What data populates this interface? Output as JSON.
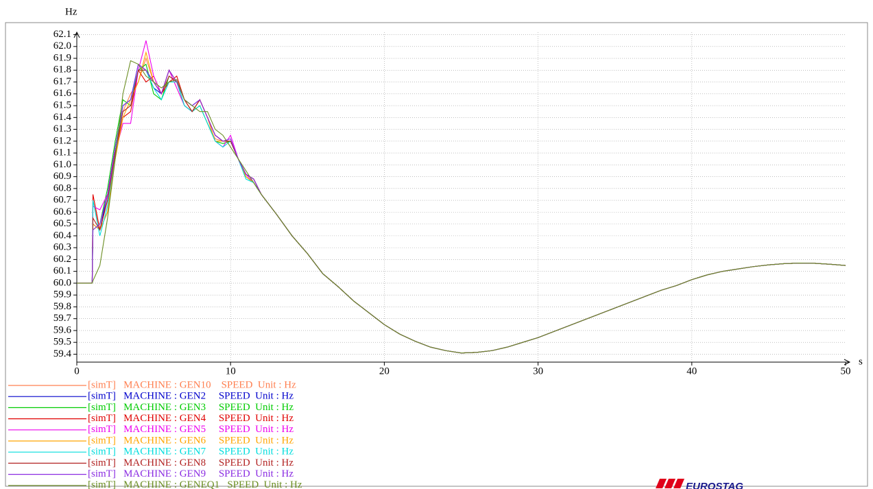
{
  "chart_data": {
    "type": "line",
    "y_label": "Hz",
    "x_label": "s",
    "logo": "EUROSTAG",
    "x": [
      0,
      1,
      1.05,
      1.5,
      2,
      2.5,
      3,
      3.5,
      4,
      4.5,
      5,
      5.5,
      6,
      6.5,
      7,
      7.5,
      8,
      8.5,
      9,
      9.5,
      10,
      10.5,
      11,
      11.5,
      12,
      13,
      14,
      15,
      16,
      17,
      18,
      19,
      20,
      21,
      22,
      23,
      24,
      25,
      26,
      27,
      28,
      29,
      30,
      31,
      32,
      33,
      34,
      35,
      36,
      37,
      38,
      39,
      40,
      41,
      42,
      43,
      44,
      45,
      46,
      47,
      48,
      49,
      50
    ],
    "xlim": [
      0,
      50
    ],
    "xticks": [
      0,
      10,
      20,
      30,
      40,
      50
    ],
    "ylim": [
      59.333,
      62.19
    ],
    "yticks": [
      59.4,
      59.5,
      59.6,
      59.7,
      59.8,
      59.9,
      {
        "value": 60,
        "label": "60.0"
      },
      60.1,
      60.2,
      60.3,
      60.4,
      60.5,
      60.6,
      60.7,
      60.8,
      60.9,
      {
        "value": 61,
        "label": "61.0"
      },
      61.1,
      61.2,
      61.3,
      61.4,
      61.5,
      61.6,
      61.7,
      61.8,
      61.9,
      {
        "value": 62,
        "label": "62.0"
      },
      62.1
    ],
    "grid": true,
    "series": [
      {
        "name": "[simT]   MACHINE : GEN10    SPEED  Unit : Hz",
        "color": "#ff7f50",
        "values": [
          60,
          60,
          60.7,
          60.45,
          60.6,
          61.1,
          61.45,
          61.6,
          61.7,
          61.9,
          61.7,
          61.6,
          61.8,
          61.65,
          61.5,
          61.45,
          61.5,
          61.35,
          61.22,
          61.2,
          61.2,
          61.05,
          60.9,
          60.85,
          60.75,
          60.58,
          60.4,
          60.25,
          60.08,
          59.97,
          59.85,
          59.75,
          59.65,
          59.57,
          59.51,
          59.46,
          59.43,
          59.41,
          59.415,
          59.43,
          59.46,
          59.5,
          59.54,
          59.59,
          59.64,
          59.69,
          59.74,
          59.79,
          59.84,
          59.89,
          59.94,
          59.98,
          60.03,
          60.07,
          60.1,
          60.12,
          60.14,
          60.155,
          60.165,
          60.17,
          60.168,
          60.16,
          60.15
        ]
      },
      {
        "name": "[simT]   MACHINE : GEN2     SPEED  Unit : Hz",
        "color": "#0000cc",
        "values": [
          60,
          60,
          60.5,
          60.45,
          60.75,
          61.15,
          61.5,
          61.55,
          61.85,
          61.8,
          61.65,
          61.6,
          61.8,
          61.7,
          61.55,
          61.5,
          61.55,
          61.4,
          61.25,
          61.2,
          61.2,
          61.05,
          60.92,
          60.88,
          60.75,
          60.58,
          60.4,
          60.25,
          60.08,
          59.97,
          59.85,
          59.75,
          59.65,
          59.57,
          59.51,
          59.46,
          59.43,
          59.41,
          59.415,
          59.43,
          59.46,
          59.5,
          59.54,
          59.59,
          59.64,
          59.69,
          59.74,
          59.79,
          59.84,
          59.89,
          59.94,
          59.98,
          60.03,
          60.07,
          60.1,
          60.12,
          60.14,
          60.155,
          60.165,
          60.17,
          60.168,
          60.16,
          60.15
        ]
      },
      {
        "name": "[simT]   MACHINE : GEN3     SPEED  Unit : Hz",
        "color": "#00cc00",
        "values": [
          60,
          60,
          60.45,
          60.5,
          60.8,
          61.2,
          61.55,
          61.5,
          61.8,
          61.85,
          61.6,
          61.55,
          61.75,
          61.7,
          61.5,
          61.45,
          61.5,
          61.35,
          61.2,
          61.18,
          61.2,
          61.05,
          60.9,
          60.85,
          60.75,
          60.58,
          60.4,
          60.25,
          60.08,
          59.97,
          59.85,
          59.75,
          59.65,
          59.57,
          59.51,
          59.46,
          59.43,
          59.41,
          59.415,
          59.43,
          59.46,
          59.5,
          59.54,
          59.59,
          59.64,
          59.69,
          59.74,
          59.79,
          59.84,
          59.89,
          59.94,
          59.98,
          60.03,
          60.07,
          60.1,
          60.12,
          60.14,
          60.155,
          60.165,
          60.17,
          60.168,
          60.16,
          60.15
        ]
      },
      {
        "name": "[simT]   MACHINE : GEN4     SPEED  Unit : Hz",
        "color": "#e00000",
        "values": [
          60,
          60,
          60.75,
          60.45,
          60.7,
          61.1,
          61.4,
          61.45,
          61.8,
          61.7,
          61.75,
          61.6,
          61.7,
          61.75,
          61.55,
          61.45,
          61.55,
          61.4,
          61.25,
          61.2,
          61.2,
          61.05,
          60.92,
          60.88,
          60.75,
          60.58,
          60.4,
          60.25,
          60.08,
          59.97,
          59.85,
          59.75,
          59.65,
          59.57,
          59.51,
          59.46,
          59.43,
          59.41,
          59.415,
          59.43,
          59.46,
          59.5,
          59.54,
          59.59,
          59.64,
          59.69,
          59.74,
          59.79,
          59.84,
          59.89,
          59.94,
          59.98,
          60.03,
          60.07,
          60.1,
          60.12,
          60.14,
          60.155,
          60.165,
          60.17,
          60.168,
          60.16,
          60.15
        ]
      },
      {
        "name": "[simT]   MACHINE : GEN5     SPEED  Unit : Hz",
        "color": "#ee00ee",
        "values": [
          60,
          60,
          60.65,
          60.62,
          60.75,
          61.1,
          61.35,
          61.35,
          61.8,
          62.05,
          61.75,
          61.6,
          61.8,
          61.65,
          61.5,
          61.45,
          61.55,
          61.4,
          61.2,
          61.15,
          61.25,
          61.05,
          60.92,
          60.85,
          60.75,
          60.58,
          60.4,
          60.25,
          60.08,
          59.97,
          59.85,
          59.75,
          59.65,
          59.57,
          59.51,
          59.46,
          59.43,
          59.41,
          59.415,
          59.43,
          59.46,
          59.5,
          59.54,
          59.59,
          59.64,
          59.69,
          59.74,
          59.79,
          59.84,
          59.89,
          59.94,
          59.98,
          60.03,
          60.07,
          60.1,
          60.12,
          60.14,
          60.155,
          60.165,
          60.17,
          60.168,
          60.16,
          60.15
        ]
      },
      {
        "name": "[simT]   MACHINE : GEN6     SPEED  Unit : Hz",
        "color": "#ffa500",
        "values": [
          60,
          60,
          60.5,
          60.45,
          60.6,
          61.05,
          61.4,
          61.55,
          61.7,
          61.95,
          61.7,
          61.6,
          61.8,
          61.7,
          61.55,
          61.45,
          61.55,
          61.4,
          61.2,
          61.2,
          61.2,
          61.05,
          60.9,
          60.85,
          60.75,
          60.58,
          60.4,
          60.25,
          60.08,
          59.97,
          59.85,
          59.75,
          59.65,
          59.57,
          59.51,
          59.46,
          59.43,
          59.41,
          59.415,
          59.43,
          59.46,
          59.5,
          59.54,
          59.59,
          59.64,
          59.69,
          59.74,
          59.79,
          59.84,
          59.89,
          59.94,
          59.98,
          60.03,
          60.07,
          60.1,
          60.12,
          60.14,
          60.155,
          60.165,
          60.17,
          60.168,
          60.16,
          60.15
        ]
      },
      {
        "name": "[simT]   MACHINE : GEN7     SPEED  Unit : Hz",
        "color": "#00dddd",
        "values": [
          60,
          60,
          60.7,
          60.4,
          60.65,
          61.1,
          61.5,
          61.55,
          61.8,
          61.8,
          61.65,
          61.55,
          61.7,
          61.7,
          61.5,
          61.45,
          61.5,
          61.35,
          61.2,
          61.15,
          61.2,
          61.05,
          60.88,
          60.85,
          60.75,
          60.58,
          60.4,
          60.25,
          60.08,
          59.97,
          59.85,
          59.75,
          59.65,
          59.57,
          59.51,
          59.46,
          59.43,
          59.41,
          59.415,
          59.43,
          59.46,
          59.5,
          59.54,
          59.59,
          59.64,
          59.69,
          59.74,
          59.79,
          59.84,
          59.89,
          59.94,
          59.98,
          60.03,
          60.07,
          60.1,
          60.12,
          60.14,
          60.155,
          60.165,
          60.17,
          60.168,
          60.16,
          60.15
        ]
      },
      {
        "name": "[simT]   MACHINE : GEN8     SPEED  Unit : Hz",
        "color": "#b22222",
        "values": [
          60,
          60,
          60.55,
          60.45,
          60.7,
          61.1,
          61.45,
          61.5,
          61.8,
          61.8,
          61.7,
          61.6,
          61.75,
          61.7,
          61.55,
          61.45,
          61.55,
          61.4,
          61.25,
          61.2,
          61.2,
          61.05,
          60.92,
          60.88,
          60.75,
          60.58,
          60.4,
          60.25,
          60.08,
          59.97,
          59.85,
          59.75,
          59.65,
          59.57,
          59.51,
          59.46,
          59.43,
          59.41,
          59.415,
          59.43,
          59.46,
          59.5,
          59.54,
          59.59,
          59.64,
          59.69,
          59.74,
          59.79,
          59.84,
          59.89,
          59.94,
          59.98,
          60.03,
          60.07,
          60.1,
          60.12,
          60.14,
          60.155,
          60.165,
          60.17,
          60.168,
          60.16,
          60.15
        ]
      },
      {
        "name": "[simT]   MACHINE : GEN9     SPEED  Unit : Hz",
        "color": "#8a2be2",
        "values": [
          60,
          60,
          60.45,
          60.5,
          60.75,
          61.15,
          61.5,
          61.55,
          61.85,
          61.8,
          61.7,
          61.6,
          61.8,
          61.7,
          61.55,
          61.5,
          61.55,
          61.4,
          61.25,
          61.2,
          61.22,
          61.05,
          60.92,
          60.88,
          60.75,
          60.58,
          60.4,
          60.25,
          60.08,
          59.97,
          59.85,
          59.75,
          59.65,
          59.57,
          59.51,
          59.46,
          59.43,
          59.41,
          59.415,
          59.43,
          59.46,
          59.5,
          59.54,
          59.59,
          59.64,
          59.69,
          59.74,
          59.79,
          59.84,
          59.89,
          59.94,
          59.98,
          60.03,
          60.07,
          60.1,
          60.12,
          60.14,
          60.155,
          60.165,
          60.17,
          60.168,
          60.16,
          60.15
        ]
      },
      {
        "name": "[simT]   MACHINE : GENEQ1   SPEED  Unit : Hz",
        "color": "#6b8e23",
        "values": [
          60,
          60,
          60.02,
          60.15,
          60.55,
          61.05,
          61.6,
          61.88,
          61.85,
          61.75,
          61.7,
          61.65,
          61.7,
          61.72,
          61.55,
          61.5,
          61.45,
          61.45,
          61.3,
          61.25,
          61.15,
          61.05,
          60.95,
          60.85,
          60.75,
          60.58,
          60.4,
          60.25,
          60.08,
          59.97,
          59.85,
          59.75,
          59.65,
          59.57,
          59.51,
          59.46,
          59.43,
          59.41,
          59.415,
          59.43,
          59.46,
          59.5,
          59.54,
          59.59,
          59.64,
          59.69,
          59.74,
          59.79,
          59.84,
          59.89,
          59.94,
          59.98,
          60.03,
          60.07,
          60.1,
          60.12,
          60.14,
          60.155,
          60.165,
          60.17,
          60.168,
          60.16,
          60.15
        ]
      }
    ]
  }
}
